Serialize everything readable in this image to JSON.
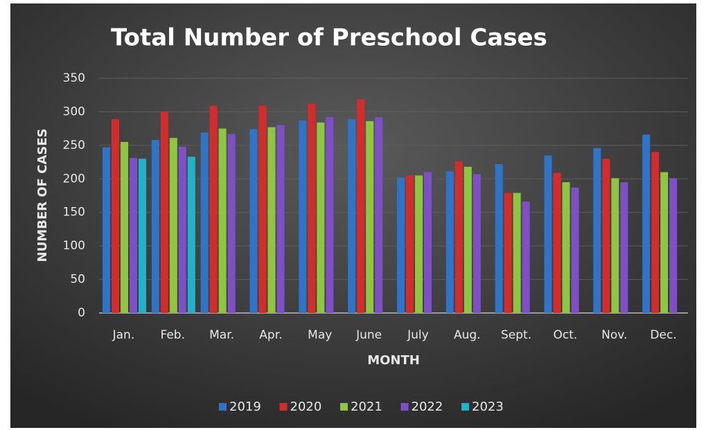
{
  "chart_data": {
    "type": "bar",
    "title": "Total Number of Preschool Cases",
    "x_label": "MONTH",
    "y_label": "NUMBER OF CASES",
    "categories": [
      "Jan.",
      "Feb.",
      "Mar.",
      "Apr.",
      "May",
      "June",
      "July",
      "Aug.",
      "Sept.",
      "Oct.",
      "Nov.",
      "Dec."
    ],
    "series": [
      {
        "name": "2019",
        "color": "#2e75c9",
        "values": [
          247,
          258,
          269,
          274,
          287,
          289,
          202,
          211,
          222,
          235,
          246,
          266
        ]
      },
      {
        "name": "2020",
        "color": "#d62b2b",
        "values": [
          289,
          300,
          309,
          309,
          312,
          319,
          205,
          226,
          179,
          209,
          230,
          240
        ]
      },
      {
        "name": "2021",
        "color": "#8dc63f",
        "values": [
          255,
          261,
          275,
          277,
          284,
          286,
          205,
          218,
          179,
          195,
          201,
          210
        ]
      },
      {
        "name": "2022",
        "color": "#7f4fc9",
        "values": [
          231,
          248,
          267,
          280,
          292,
          292,
          210,
          207,
          166,
          187,
          195,
          201
        ]
      },
      {
        "name": "2023",
        "color": "#1fb3c9",
        "values": [
          230,
          233,
          null,
          null,
          null,
          null,
          null,
          null,
          null,
          null,
          null,
          null
        ]
      }
    ],
    "ylim": [
      0,
      350
    ],
    "yticks": [
      0,
      50,
      100,
      150,
      200,
      250,
      300,
      350
    ],
    "grid": true,
    "legend": "bottom"
  }
}
